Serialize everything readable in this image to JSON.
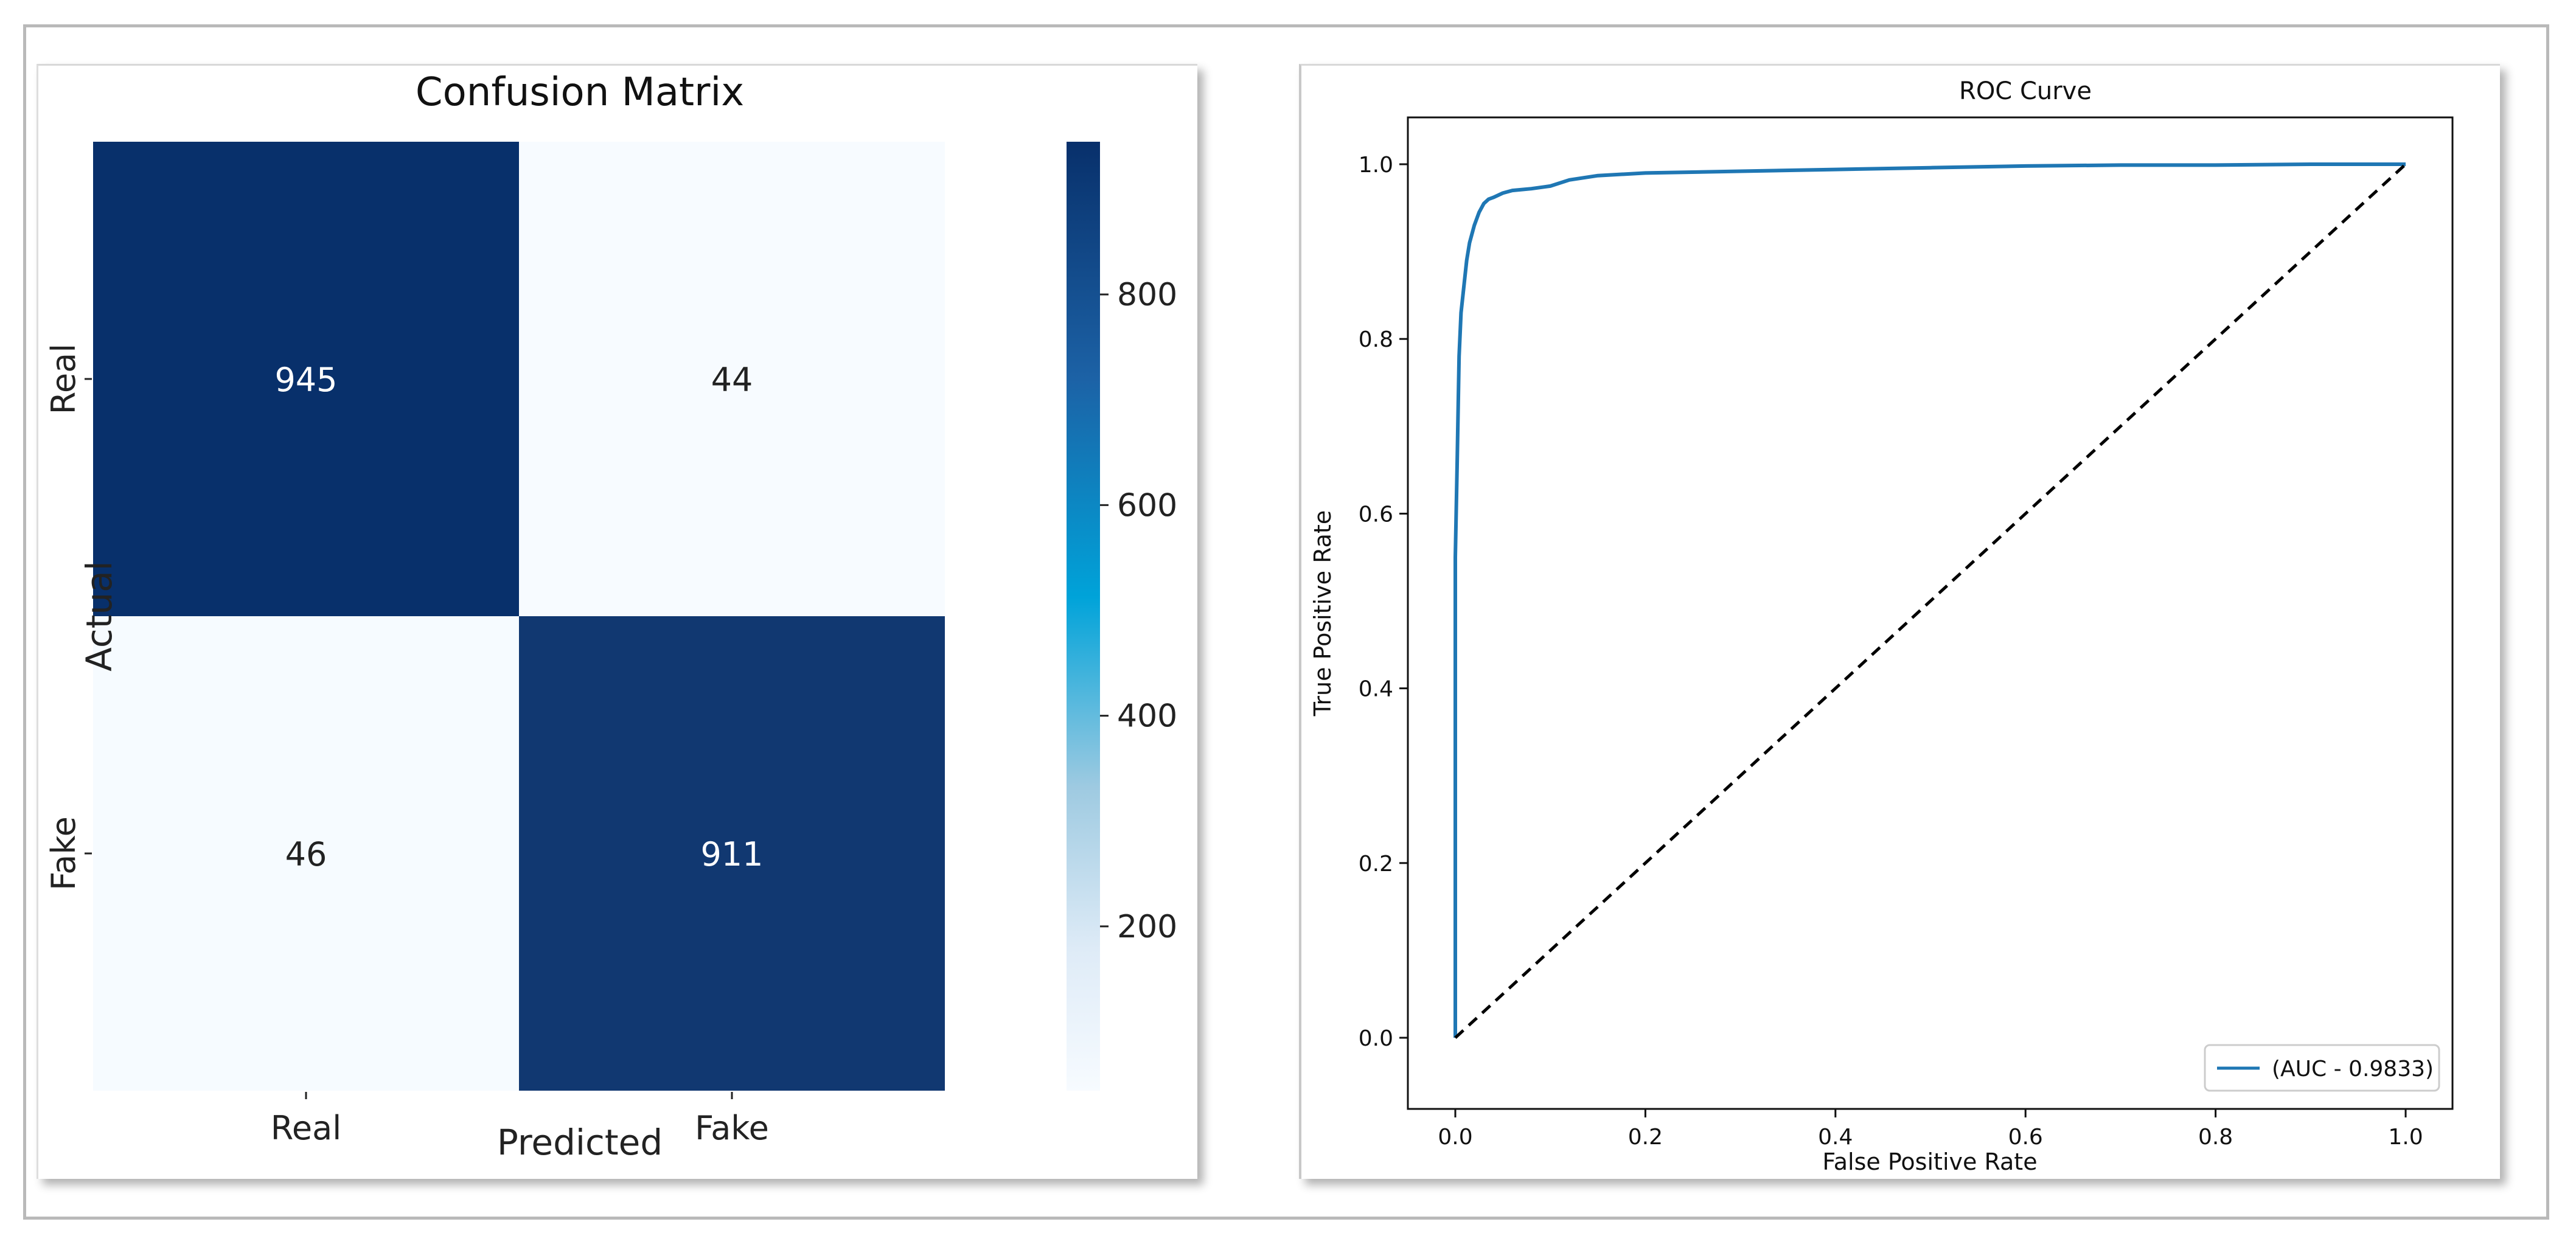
{
  "chart_data": [
    {
      "type": "heatmap",
      "title": "Confusion Matrix",
      "xlabel": "Predicted",
      "ylabel": "Actual",
      "x_categories": [
        "Real",
        "Fake"
      ],
      "y_categories": [
        "Real",
        "Fake"
      ],
      "values": [
        [
          945,
          44
        ],
        [
          46,
          911
        ]
      ],
      "colormap": "Blues",
      "colorbar": {
        "min": 44,
        "max": 945,
        "ticks": [
          200,
          400,
          600,
          800
        ]
      },
      "colors": {
        "low": "#f7fbff",
        "high": "#08306b"
      }
    },
    {
      "type": "line",
      "title": "ROC Curve",
      "xlabel": "False Positive Rate",
      "ylabel": "True Positive Rate",
      "xlim": [
        0,
        1
      ],
      "ylim": [
        0,
        1
      ],
      "xticks": [
        0.0,
        0.2,
        0.4,
        0.6,
        0.8,
        1.0
      ],
      "yticks": [
        0.0,
        0.2,
        0.4,
        0.6,
        0.8,
        1.0
      ],
      "legend_placement": "lower-right",
      "series": [
        {
          "name": "(AUC - 0.9833)",
          "color": "#1f77b4",
          "x": [
            0.0,
            0.0,
            0.002,
            0.004,
            0.006,
            0.008,
            0.01,
            0.012,
            0.015,
            0.02,
            0.025,
            0.03,
            0.035,
            0.04,
            0.05,
            0.06,
            0.08,
            0.1,
            0.12,
            0.15,
            0.2,
            0.3,
            0.4,
            0.5,
            0.6,
            0.7,
            0.8,
            0.9,
            1.0
          ],
          "y": [
            0.0,
            0.55,
            0.66,
            0.78,
            0.83,
            0.85,
            0.87,
            0.89,
            0.91,
            0.93,
            0.945,
            0.955,
            0.96,
            0.962,
            0.967,
            0.97,
            0.972,
            0.975,
            0.982,
            0.987,
            0.99,
            0.992,
            0.994,
            0.996,
            0.998,
            0.999,
            0.999,
            1.0,
            1.0
          ]
        },
        {
          "color": "#000000",
          "line_style": "dashed",
          "x": [
            0.0,
            1.0
          ],
          "y": [
            0.0,
            1.0
          ]
        }
      ]
    }
  ]
}
